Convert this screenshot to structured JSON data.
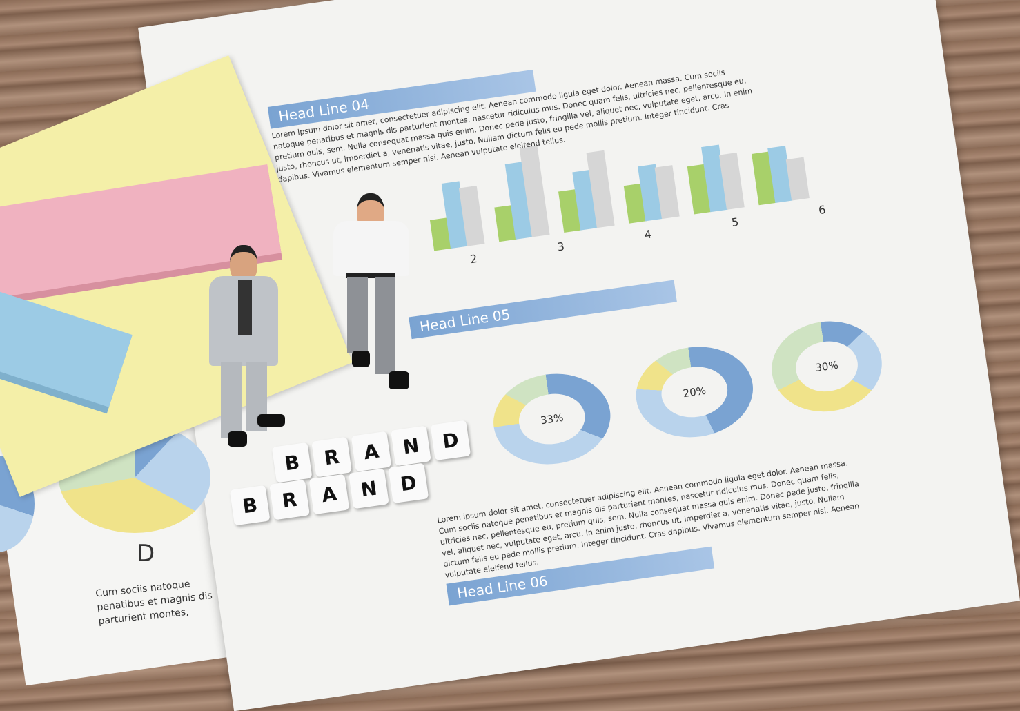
{
  "document": {
    "headlines": [
      "Head Line 04",
      "Head Line 05",
      "Head Line 06"
    ],
    "bar_numbers": [
      "2",
      "3",
      "4",
      "5",
      "6"
    ],
    "donut_labels": [
      "33%",
      "20%",
      "30%"
    ],
    "pie_letter": "D",
    "pie_caption": "Cum sociis natoque penatibus et magnis dis parturient montes,",
    "body_text": "Lorem ipsum dolor sit amet, consectetuer adipiscing elit. Aenean commodo ligula eget dolor. Aenean massa. Cum sociis natoque penatibus et magnis dis parturient montes, nascetur ridiculus mus. Donec quam felis, ultricies nec, pellentesque eu, pretium quis, sem. Nulla consequat massa quis enim. Donec pede justo, fringilla vel, aliquet nec, vulputate eget, arcu. In enim justo, rhoncus ut, imperdiet a, venenatis vitae, justo. Nullam dictum felis eu pede mollis pretium. Integer tincidunt. Cras dapibus. Vivamus elementum semper nisi. Aenean vulputate eleifend tellus."
  },
  "blocks": {
    "row1": [
      "B",
      "R",
      "A",
      "N",
      "D"
    ],
    "row2": [
      "B",
      "R",
      "A",
      "N",
      "D"
    ]
  },
  "colors": {
    "blue": "#7aa3d2",
    "green": "#a8d06a",
    "gray": "#d6d6d6",
    "yellow": "#f4efa8",
    "pink": "#f0b2c0",
    "lightblue": "#9ccbe5"
  }
}
